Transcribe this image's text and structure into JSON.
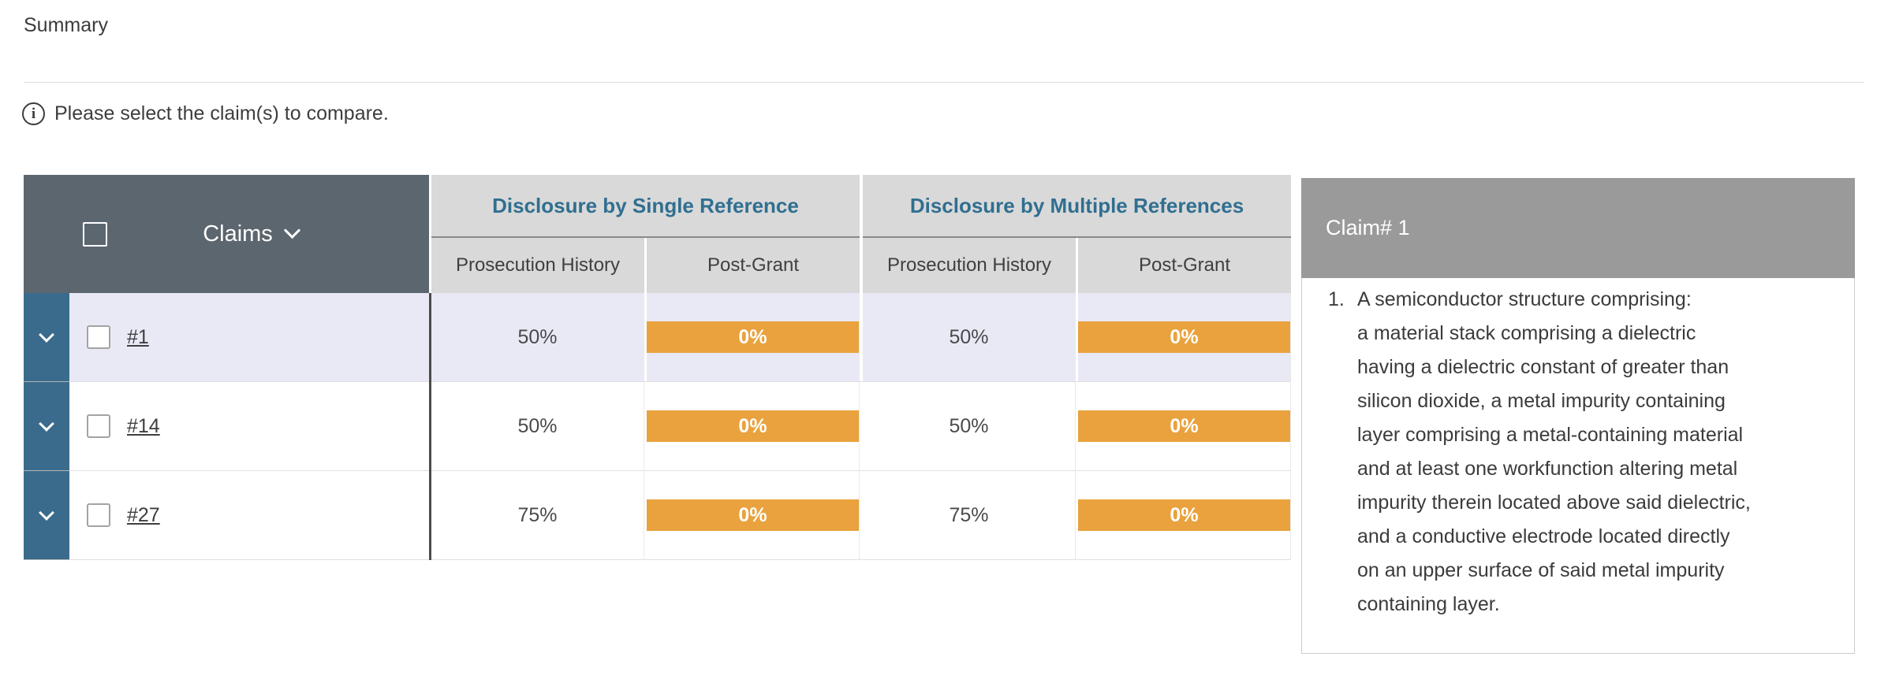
{
  "header": {
    "title": "Summary",
    "instruction": "Please select the claim(s) to compare.",
    "info_icon": "info-circle-icon",
    "info_glyph": "i"
  },
  "table": {
    "claims_column_label": "Claims",
    "group_headers": [
      "Disclosure by Single Reference",
      "Disclosure by Multiple References"
    ],
    "sub_headers": [
      "Prosecution History",
      "Post-Grant",
      "Prosecution History",
      "Post-Grant"
    ],
    "rows": [
      {
        "claim_label": "#1",
        "highlighted": true,
        "checked": false,
        "values": [
          "50%",
          "0%",
          "50%",
          "0%"
        ]
      },
      {
        "claim_label": "#14",
        "highlighted": false,
        "checked": false,
        "values": [
          "50%",
          "0%",
          "50%",
          "0%"
        ]
      },
      {
        "claim_label": "#27",
        "highlighted": false,
        "checked": false,
        "values": [
          "75%",
          "0%",
          "75%",
          "0%"
        ]
      }
    ]
  },
  "claim_panel": {
    "title": "Claim# 1",
    "claim_number": "1.",
    "claim_text": "A semiconductor structure comprising:\na material stack comprising a dielectric\nhaving a dielectric constant of greater than\nsilicon dioxide, a metal impurity containing\nlayer comprising a metal-containing material\nand at least one workfunction altering metal\nimpurity therein located above said dielectric,\nand a conductive electrode located directly\non an upper surface of said metal impurity\ncontaining layer."
  },
  "colors": {
    "claims_header_bg": "#5c666f",
    "column_header_bg": "#d9d9d9",
    "group_header_text": "#306f90",
    "expander_bg": "#3a6b8c",
    "highlighted_row_bg": "#e9e9f6",
    "zero_bar_bg": "#e9a23d",
    "panel_header_bg": "#9a9a9a"
  }
}
